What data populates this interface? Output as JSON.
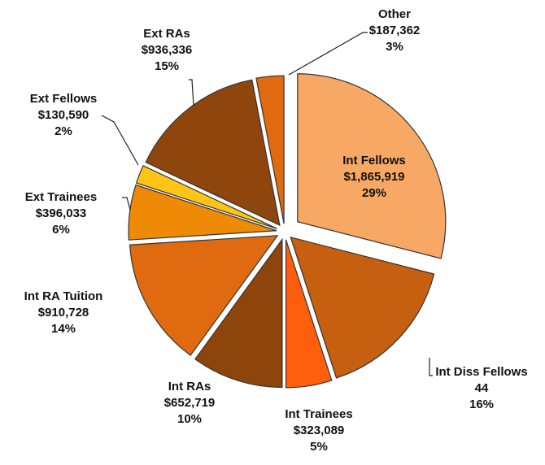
{
  "chart_data": {
    "type": "pie",
    "categories": [
      "Int Fellows",
      "Int Diss Fellows",
      "Int Trainees",
      "Int RAs",
      "Int RA Tuition",
      "Ext Trainees",
      "Ext Fellows",
      "Ext RAs",
      "Other"
    ],
    "amounts": [
      "$1,865,919",
      "44",
      "$323,089",
      "$652,719",
      "$910,728",
      "$396,033",
      "$130,590",
      "$936,336",
      "$187,362"
    ],
    "values": [
      29,
      16,
      5,
      10,
      14,
      6,
      2,
      15,
      3
    ],
    "value_labels": [
      "29%",
      "16%",
      "5%",
      "10%",
      "14%",
      "6%",
      "2%",
      "15%",
      "3%"
    ],
    "colors": [
      "#f7a865",
      "#c65f10",
      "#ff5e0d",
      "#8e450b",
      "#e06a10",
      "#ee8a05",
      "#ffc415",
      "#8e460d",
      "#e06a10"
    ]
  }
}
